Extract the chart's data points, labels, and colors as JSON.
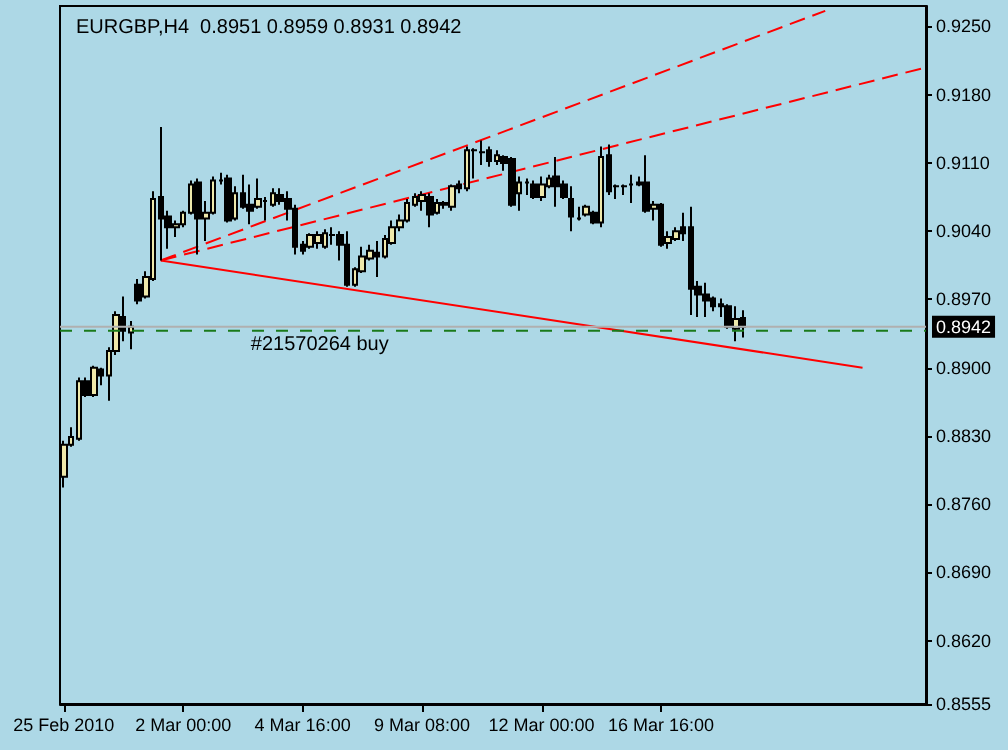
{
  "chart_data": {
    "type": "candlestick",
    "title": "EURGBP,H4  0.8951 0.8959 0.8931 0.8942",
    "categories": [
      "25 Feb 2010",
      null,
      null,
      null,
      null,
      null,
      null,
      null,
      null,
      null,
      null,
      null,
      null,
      null,
      null,
      null,
      "2 Mar 00:00",
      null,
      null,
      null,
      null,
      null,
      null,
      null,
      null,
      null,
      null,
      null,
      null,
      null,
      null,
      null,
      "4 Mar 16:00",
      null,
      null,
      null,
      null,
      null,
      null,
      null,
      null,
      null,
      null,
      null,
      null,
      null,
      null,
      null,
      "9 Mar 08:00",
      null,
      null,
      null,
      null,
      null,
      null,
      null,
      null,
      null,
      null,
      null,
      null,
      null,
      null,
      null,
      "12 Mar 00:00",
      null,
      null,
      null,
      null,
      null,
      null,
      null,
      null,
      null,
      null,
      null,
      null,
      null,
      null,
      null,
      "16 Mar 16:00",
      null,
      null,
      null,
      null,
      null,
      null,
      null,
      null,
      null,
      null,
      null,
      null,
      null,
      null,
      null,
      null,
      null,
      null,
      null,
      null,
      null,
      null,
      null,
      null,
      null,
      null,
      null,
      null,
      null,
      null,
      null,
      null,
      null,
      null,
      null
    ],
    "ylim": [
      0.8555,
      0.9271
    ],
    "yticks": [
      {
        "value": 0.925,
        "label": "0.9250"
      },
      {
        "value": 0.918,
        "label": "0.9180"
      },
      {
        "value": 0.911,
        "label": "0.9110"
      },
      {
        "value": 0.904,
        "label": "0.9040"
      },
      {
        "value": 0.897,
        "label": "0.8970"
      },
      {
        "value": 0.89,
        "label": "0.8900"
      },
      {
        "value": 0.883,
        "label": "0.8830"
      },
      {
        "value": 0.876,
        "label": "0.8760"
      },
      {
        "value": 0.869,
        "label": "0.8690"
      },
      {
        "value": 0.862,
        "label": "0.8620"
      },
      {
        "value": 0.8555,
        "label": "0.8555"
      }
    ],
    "grid": false,
    "ref_lines": [
      {
        "axis": "y",
        "value": 0.8938,
        "label": "#21570264 buy",
        "color": "#1a7a1a",
        "line_style": "dashed"
      },
      {
        "axis": "y",
        "value": 0.8942,
        "label": "0.8942",
        "color": "#b0b0b0",
        "line_style": "solid"
      }
    ],
    "series": [
      {
        "type": "candlestick",
        "colors": [
          "#eee8aa",
          "#eee8aa",
          "#eee8aa",
          "#000000",
          "#eee8aa",
          "#000000",
          "#eee8aa",
          "#eee8aa",
          "#000000",
          "#eee8aa",
          "#000000",
          "#eee8aa",
          "#eee8aa",
          "#000000",
          "#000000",
          "#eee8aa",
          "#eee8aa",
          "#eee8aa",
          "#000000",
          "#eee8aa",
          "#eee8aa",
          "#000000",
          "#000000",
          "#eee8aa",
          "#000000",
          "#000000",
          "#eee8aa",
          "#000000",
          "#eee8aa",
          "#000000",
          "#000000",
          "#000000",
          "#000000",
          "#eee8aa",
          "#eee8aa",
          "#eee8aa",
          "#000000",
          "#000000",
          "#000000",
          "#eee8aa",
          "#eee8aa",
          "#eee8aa",
          "#000000",
          "#eee8aa",
          "#eee8aa",
          "#eee8aa",
          "#eee8aa",
          "#eee8aa",
          "#eee8aa",
          "#000000",
          "#eee8aa",
          "#eee8aa",
          "#eee8aa",
          "#000000",
          "#eee8aa",
          "#000000",
          "#000000",
          "#000000",
          "#eee8aa",
          "#000000",
          "#000000",
          "#eee8aa",
          "#000000",
          "#000000",
          "#eee8aa",
          "#eee8aa",
          "#000000",
          "#000000",
          "#000000",
          "#000000",
          "#eee8aa",
          "#000000",
          "#eee8aa",
          "#000000",
          "#000000",
          "#000000",
          "#000000",
          "#eee8aa",
          "#000000",
          "#eee8aa",
          "#000000",
          "#eee8aa",
          "#eee8aa",
          "#000000",
          "#000000",
          "#000000",
          "#000000",
          "#000000",
          "#000000",
          "#000000",
          "#eee8aa",
          "#000000",
          null,
          null,
          null,
          null,
          null,
          null,
          null,
          null,
          null,
          null,
          null,
          null,
          null,
          null,
          null,
          null,
          null,
          null,
          null,
          null,
          null,
          null,
          null,
          null
        ],
        "ohlc": [
          [
            0.8788,
            0.8825,
            0.8777,
            0.8821
          ],
          [
            0.8821,
            0.8839,
            0.8819,
            0.8829
          ],
          [
            0.8827,
            0.889,
            0.8825,
            0.8886
          ],
          [
            0.8886,
            0.889,
            0.887,
            0.8872
          ],
          [
            0.8872,
            0.8902,
            0.887,
            0.89
          ],
          [
            0.8898,
            0.89,
            0.8882,
            0.8892
          ],
          [
            0.8892,
            0.8921,
            0.8866,
            0.8917
          ],
          [
            0.8917,
            0.8958,
            0.8913,
            0.8954
          ],
          [
            0.8952,
            0.8973,
            0.8927,
            0.8938
          ],
          [
            0.8936,
            0.8948,
            0.8919,
            0.8942
          ],
          [
            0.8985,
            0.8991,
            0.8965,
            0.8969
          ],
          [
            0.8973,
            0.8999,
            0.8971,
            0.8993
          ],
          [
            0.8991,
            0.9081,
            0.8989,
            0.9073
          ],
          [
            0.9075,
            0.9147,
            0.901,
            0.9053
          ],
          [
            0.9055,
            0.9061,
            0.9022,
            0.9044
          ],
          [
            0.9044,
            0.9051,
            0.9034,
            0.9047
          ],
          [
            0.9047,
            0.9061,
            0.9044,
            0.9059
          ],
          [
            0.9059,
            0.9092,
            0.9057,
            0.9088
          ],
          [
            0.909,
            0.9094,
            0.9016,
            0.9053
          ],
          [
            0.9053,
            0.9071,
            0.903,
            0.9059
          ],
          [
            0.9059,
            0.9096,
            0.9057,
            0.9092
          ],
          [
            0.9092,
            0.91,
            0.9088,
            0.9092
          ],
          [
            0.9094,
            0.9098,
            0.9049,
            0.9051
          ],
          [
            0.9053,
            0.9086,
            0.9051,
            0.9079
          ],
          [
            0.9079,
            0.9098,
            0.9063,
            0.9065
          ],
          [
            0.9067,
            0.9088,
            0.9047,
            0.9061
          ],
          [
            0.9065,
            0.9094,
            0.9063,
            0.9073
          ],
          [
            0.9071,
            0.9075,
            0.9051,
            0.9071
          ],
          [
            0.9067,
            0.9084,
            0.9065,
            0.9079
          ],
          [
            0.9077,
            0.9084,
            0.9067,
            0.9071
          ],
          [
            0.9073,
            0.9081,
            0.9051,
            0.9063
          ],
          [
            0.9063,
            0.9067,
            0.9016,
            0.9024
          ],
          [
            0.9026,
            0.903,
            0.9016,
            0.902
          ],
          [
            0.9024,
            0.9038,
            0.9022,
            0.9036
          ],
          [
            0.9028,
            0.904,
            0.9022,
            0.9036
          ],
          [
            0.9024,
            0.9042,
            0.9022,
            0.9038
          ],
          [
            0.9036,
            0.9044,
            0.9026,
            0.9036
          ],
          [
            0.9036,
            0.904,
            0.901,
            0.9026
          ],
          [
            0.9026,
            0.904,
            0.8983,
            0.8985
          ],
          [
            0.8985,
            0.9003,
            0.8983,
            0.9001
          ],
          [
            0.8999,
            0.9024,
            0.8997,
            0.9014
          ],
          [
            0.9012,
            0.9026,
            0.901,
            0.902
          ],
          [
            0.9018,
            0.903,
            0.8993,
            0.9014
          ],
          [
            0.9014,
            0.9036,
            0.9012,
            0.9032
          ],
          [
            0.9028,
            0.9051,
            0.9026,
            0.9044
          ],
          [
            0.9044,
            0.9057,
            0.904,
            0.9051
          ],
          [
            0.9051,
            0.9073,
            0.9049,
            0.9069
          ],
          [
            0.9067,
            0.9079,
            0.9065,
            0.9075
          ],
          [
            0.9071,
            0.9081,
            0.9061,
            0.9077
          ],
          [
            0.9075,
            0.9079,
            0.9044,
            0.9057
          ],
          [
            0.9059,
            0.9073,
            0.9057,
            0.9069
          ],
          [
            0.9067,
            0.9071,
            0.9063,
            0.9069
          ],
          [
            0.9065,
            0.9088,
            0.9061,
            0.9086
          ],
          [
            0.9088,
            0.9092,
            0.9079,
            0.9084
          ],
          [
            0.9084,
            0.9127,
            0.9081,
            0.9123
          ],
          [
            0.9123,
            0.9125,
            0.9094,
            0.9123
          ],
          [
            0.9121,
            0.9133,
            0.9108,
            0.9121
          ],
          [
            0.9123,
            0.9127,
            0.9106,
            0.9112
          ],
          [
            0.9112,
            0.9123,
            0.9108,
            0.9118
          ],
          [
            0.9116,
            0.9118,
            0.9102,
            0.911
          ],
          [
            0.9114,
            0.9116,
            0.9065,
            0.9067
          ],
          [
            0.9079,
            0.9096,
            0.9061,
            0.909
          ],
          [
            0.909,
            0.9094,
            0.9077,
            0.909
          ],
          [
            0.9088,
            0.9092,
            0.9073,
            0.9075
          ],
          [
            0.9075,
            0.9096,
            0.9071,
            0.9088
          ],
          [
            0.9086,
            0.9098,
            0.9084,
            0.9094
          ],
          [
            0.9096,
            0.9116,
            0.9065,
            0.9086
          ],
          [
            0.9088,
            0.9092,
            0.9073,
            0.9075
          ],
          [
            0.9073,
            0.9086,
            0.904,
            0.9055
          ],
          [
            0.9053,
            0.9065,
            0.9051,
            0.9053
          ],
          [
            0.9057,
            0.9067,
            0.9055,
            0.9065
          ],
          [
            0.9059,
            0.9061,
            0.9047,
            0.9049
          ],
          [
            0.9049,
            0.9127,
            0.9044,
            0.9116
          ],
          [
            0.9118,
            0.9129,
            0.9077,
            0.9081
          ],
          [
            0.9086,
            0.9088,
            0.9073,
            0.9086
          ],
          [
            0.9086,
            0.9088,
            0.9077,
            0.9086
          ],
          [
            0.9088,
            0.9098,
            0.9069,
            0.9088
          ],
          [
            0.9088,
            0.9096,
            0.9086,
            0.909
          ],
          [
            0.909,
            0.9118,
            0.9059,
            0.9061
          ],
          [
            0.9063,
            0.9071,
            0.9051,
            0.9067
          ],
          [
            0.9067,
            0.9069,
            0.9024,
            0.9026
          ],
          [
            0.9028,
            0.904,
            0.9022,
            0.9034
          ],
          [
            0.9032,
            0.9044,
            0.903,
            0.904
          ],
          [
            0.9044,
            0.9059,
            0.903,
            0.9038
          ],
          [
            0.9044,
            0.9065,
            0.8954,
            0.8981
          ],
          [
            0.8983,
            0.8989,
            0.8952,
            0.8975
          ],
          [
            0.8975,
            0.8987,
            0.8952,
            0.8969
          ],
          [
            0.8971,
            0.8973,
            0.8958,
            0.8963
          ],
          [
            0.8965,
            0.8971,
            0.8952,
            0.8963
          ],
          [
            0.8963,
            0.8965,
            0.894,
            0.8942
          ],
          [
            0.894,
            0.8963,
            0.8927,
            0.895
          ],
          [
            0.8951,
            0.8959,
            0.8931,
            0.8942
          ],
          null,
          null,
          null,
          null,
          null,
          null,
          null,
          null,
          null,
          null,
          null,
          null,
          null,
          null,
          null,
          null,
          null,
          null,
          null,
          null,
          null,
          null,
          null,
          null
        ]
      },
      {
        "type": "line",
        "color": "#ff0000",
        "line_style": "solid",
        "values": [
          null,
          null,
          null,
          null,
          null,
          null,
          null,
          null,
          null,
          null,
          null,
          null,
          null,
          0.901,
          null,
          null,
          null,
          null,
          null,
          null,
          null,
          null,
          null,
          null,
          null,
          null,
          null,
          null,
          null,
          null,
          null,
          null,
          null,
          null,
          null,
          null,
          null,
          null,
          null,
          null,
          null,
          null,
          null,
          null,
          null,
          null,
          null,
          null,
          null,
          null,
          null,
          null,
          null,
          null,
          null,
          null,
          null,
          null,
          null,
          null,
          null,
          null,
          null,
          null,
          null,
          null,
          null,
          null,
          null,
          null,
          null,
          null,
          null,
          null,
          null,
          null,
          null,
          null,
          null,
          null,
          null,
          null,
          null,
          null,
          null,
          null,
          null,
          null,
          null,
          null,
          null,
          null,
          null,
          null,
          null,
          null,
          null,
          null,
          null,
          null,
          null,
          null,
          null,
          null,
          null,
          null,
          null,
          0.89,
          null,
          null,
          null,
          null,
          null,
          null,
          null,
          null
        ]
      },
      {
        "type": "line",
        "color": "#ff0000",
        "line_style": "dashed",
        "values": [
          null,
          null,
          null,
          null,
          null,
          null,
          null,
          null,
          null,
          null,
          null,
          null,
          null,
          0.901,
          null,
          null,
          null,
          null,
          null,
          null,
          null,
          null,
          null,
          null,
          null,
          null,
          null,
          null,
          null,
          null,
          null,
          null,
          null,
          null,
          null,
          null,
          null,
          null,
          null,
          null,
          null,
          null,
          null,
          null,
          null,
          null,
          null,
          null,
          null,
          null,
          null,
          null,
          null,
          null,
          null,
          null,
          null,
          null,
          null,
          null,
          null,
          null,
          null,
          null,
          null,
          null,
          null,
          null,
          null,
          null,
          null,
          null,
          null,
          null,
          null,
          null,
          null,
          null,
          null,
          null,
          null,
          null,
          null,
          null,
          null,
          null,
          null,
          null,
          null,
          null,
          null,
          null,
          null,
          null,
          null,
          null,
          null,
          null,
          null,
          null,
          null,
          null,
          0.9266,
          null,
          null,
          null,
          null,
          null,
          null,
          null,
          null,
          null,
          null,
          null,
          null,
          null
        ]
      },
      {
        "type": "line",
        "color": "#ff0000",
        "line_style": "dashed",
        "values": [
          null,
          null,
          null,
          null,
          null,
          null,
          null,
          null,
          null,
          null,
          null,
          null,
          null,
          0.901,
          null,
          null,
          null,
          null,
          null,
          null,
          null,
          null,
          null,
          null,
          null,
          null,
          null,
          null,
          null,
          null,
          null,
          null,
          null,
          null,
          null,
          null,
          null,
          null,
          null,
          null,
          null,
          null,
          null,
          null,
          null,
          null,
          null,
          null,
          null,
          null,
          null,
          null,
          null,
          null,
          null,
          null,
          null,
          null,
          null,
          null,
          null,
          null,
          null,
          null,
          null,
          null,
          null,
          null,
          null,
          null,
          null,
          null,
          null,
          null,
          null,
          null,
          null,
          null,
          null,
          null,
          null,
          null,
          null,
          null,
          null,
          null,
          null,
          null,
          null,
          null,
          null,
          null,
          null,
          null,
          null,
          null,
          null,
          null,
          null,
          null,
          null,
          null,
          null,
          null,
          null,
          null,
          null,
          null,
          null,
          null,
          null,
          null,
          null,
          null,
          null,
          0.9207
        ]
      }
    ]
  }
}
